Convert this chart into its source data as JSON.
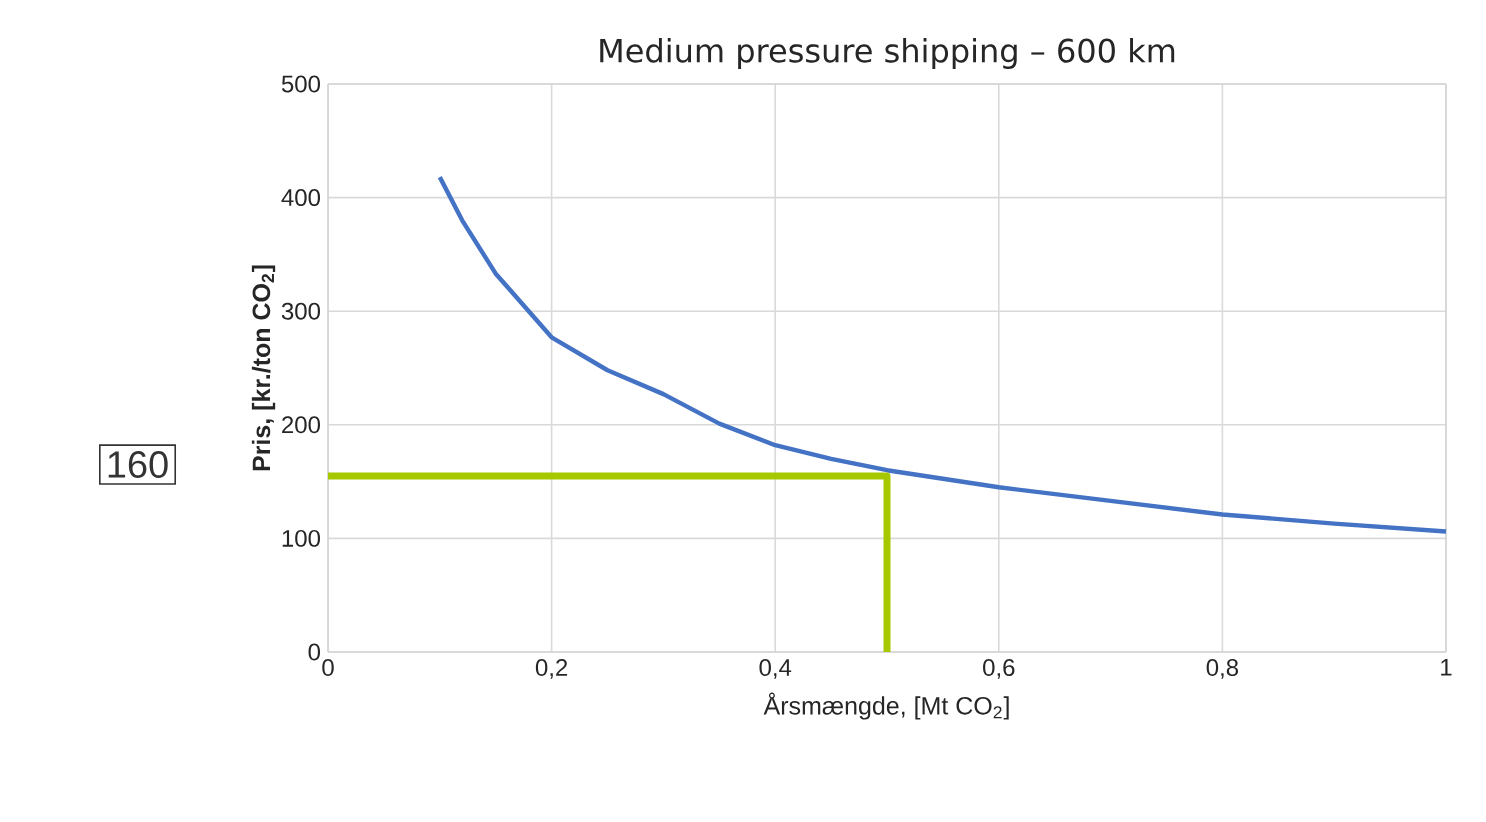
{
  "chart_data": {
    "type": "line",
    "title": "Medium pressure shipping – 600 km",
    "xlabel": "Årsmængde, [Mt CO$_{2}$]",
    "ylabel": "**Pris, [kr./ton CO$_{2}$]**",
    "xlim": [
      0,
      1
    ],
    "ylim": [
      0,
      500
    ],
    "xticks": [
      0,
      {
        "value": 0.2,
        "label": "0,2"
      },
      {
        "value": 0.4,
        "label": "0,4"
      },
      {
        "value": 0.6,
        "label": "0,6"
      },
      {
        "value": 0.8,
        "label": "0,8"
      },
      1
    ],
    "yticks": [
      0,
      100,
      200,
      300,
      400,
      500
    ],
    "grid": true,
    "marker": "none",
    "line_style": "solid",
    "series": [
      {
        "color": "#4472c4",
        "x": [
          0.1,
          0.12,
          0.15,
          0.2,
          0.25,
          0.3,
          0.35,
          0.4,
          0.45,
          0.5,
          0.6,
          0.7,
          0.8,
          0.9,
          1.0
        ],
        "values": [
          418,
          380,
          333,
          277,
          248,
          227,
          201,
          182,
          170,
          160,
          145,
          133,
          121,
          113,
          106
        ]
      },
      {
        "color": "#a5c800",
        "x": [
          0,
          0.5,
          0.5
        ],
        "values": [
          155,
          155,
          0
        ]
      }
    ],
    "annotations": [
      "160"
    ]
  }
}
